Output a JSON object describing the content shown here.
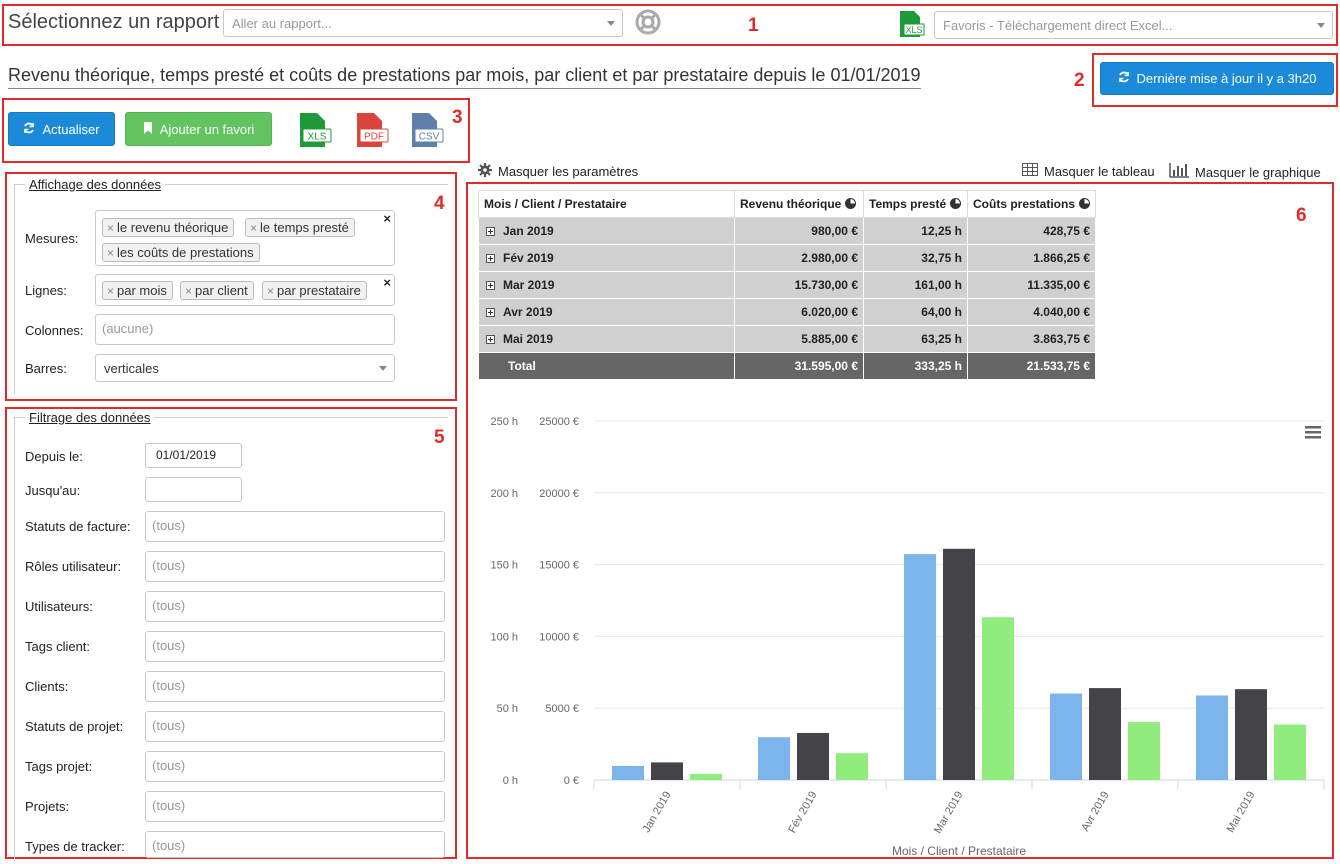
{
  "header": {
    "title": "Sélectionnez un rapport",
    "report_select_placeholder": "Aller au rapport...",
    "favorites_placeholder": "Favoris - Téléchargement direct Excel...",
    "xls_icon_label": "XLS"
  },
  "report": {
    "title": "Revenu théorique, temps presté et coûts de prestations par mois, par client et par prestataire depuis le 01/01/2019",
    "last_update_label": "Dernière mise à jour il y a 3h20"
  },
  "toolbar": {
    "refresh_label": "Actualiser",
    "add_favorite_label": "Ajouter un favori",
    "exports": [
      "XLS",
      "PDF",
      "CSV"
    ]
  },
  "annotations": [
    "1",
    "2",
    "3",
    "4",
    "5",
    "6"
  ],
  "toggles": {
    "hide_params": "Masquer les paramètres",
    "hide_table": "Masquer le tableau",
    "hide_chart": "Masquer le graphique"
  },
  "display": {
    "legend": "Affichage des données",
    "measures_label": "Mesures:",
    "measures": [
      "le revenu théorique",
      "le temps presté",
      "les coûts de prestations"
    ],
    "rows_label": "Lignes:",
    "rows": [
      "par mois",
      "par client",
      "par prestataire"
    ],
    "columns_label": "Colonnes:",
    "columns_placeholder": "(aucune)",
    "bars_label": "Barres:",
    "bars_value": "verticales"
  },
  "filters": {
    "legend": "Filtrage des données",
    "since_label": "Depuis le:",
    "since_value": "01/01/2019",
    "until_label": "Jusqu'au:",
    "until_value": "",
    "fields": [
      {
        "label": "Statuts de facture:",
        "placeholder": "(tous)"
      },
      {
        "label": "Rôles utilisateur:",
        "placeholder": "(tous)"
      },
      {
        "label": "Utilisateurs:",
        "placeholder": "(tous)"
      },
      {
        "label": "Tags client:",
        "placeholder": "(tous)"
      },
      {
        "label": "Clients:",
        "placeholder": "(tous)"
      },
      {
        "label": "Statuts de projet:",
        "placeholder": "(tous)"
      },
      {
        "label": "Tags projet:",
        "placeholder": "(tous)"
      },
      {
        "label": "Projets:",
        "placeholder": "(tous)"
      },
      {
        "label": "Types de tracker:",
        "placeholder": "(tous)"
      }
    ]
  },
  "table": {
    "headers": [
      "Mois / Client / Prestataire",
      "Revenu théorique",
      "Temps presté",
      "Coûts prestations"
    ],
    "rows": [
      [
        "Jan 2019",
        "980,00 €",
        "12,25 h",
        "428,75 €"
      ],
      [
        "Fév 2019",
        "2.980,00 €",
        "32,75 h",
        "1.866,25 €"
      ],
      [
        "Mar 2019",
        "15.730,00 €",
        "161,00 h",
        "11.335,00 €"
      ],
      [
        "Avr 2019",
        "6.020,00 €",
        "64,00 h",
        "4.040,00 €"
      ],
      [
        "Mai 2019",
        "5.885,00 €",
        "63,25 h",
        "3.863,75 €"
      ]
    ],
    "total": [
      "Total",
      "31.595,00 €",
      "333,25 h",
      "21.533,75 €"
    ]
  },
  "chart_data": {
    "type": "bar",
    "categories": [
      "Jan 2019",
      "Fév 2019",
      "Mar 2019",
      "Avr 2019",
      "Mai 2019"
    ],
    "series": [
      {
        "values": [
          980,
          2980,
          15730,
          6020,
          5885
        ],
        "axis": "euro",
        "color": "#7cb5ec"
      },
      {
        "values": [
          12.25,
          32.75,
          161,
          64,
          63.25
        ],
        "axis": "hours",
        "color": "#434348"
      },
      {
        "values": [
          428.75,
          1866.25,
          11335,
          4040,
          3863.75
        ],
        "axis": "euro",
        "color": "#90ed7d"
      }
    ],
    "y_hours_ticks": [
      "0 h",
      "50 h",
      "100 h",
      "150 h",
      "200 h",
      "250 h"
    ],
    "y_euro_ticks": [
      "0 €",
      "5000 €",
      "10000 €",
      "15000 €",
      "20000 €",
      "25000 €"
    ],
    "ylim_hours": [
      0,
      250
    ],
    "ylim_euro": [
      0,
      25000
    ],
    "xlabel": "Mois / Client / Prestataire",
    "grid": true
  }
}
